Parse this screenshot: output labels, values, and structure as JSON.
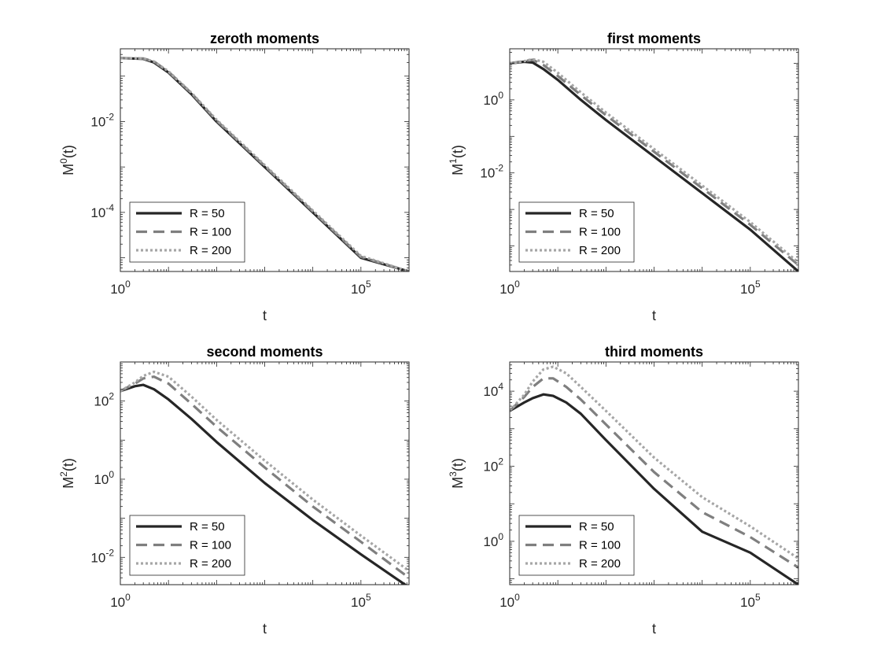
{
  "chart_data": [
    {
      "type": "line",
      "title": "zeroth moments",
      "xlabel": "t",
      "ylabel": "M^0(t)",
      "ylabel_base": "M",
      "ylabel_sup": "0",
      "ylabel_tail": "(t)",
      "x_scale": "log",
      "y_scale": "log",
      "xlim": [
        1,
        1000000
      ],
      "ylim": [
        5e-06,
        0.4
      ],
      "x_ticks": [
        {
          "base": "10",
          "exp": "0",
          "value": 1
        },
        {
          "base": "10",
          "exp": "5",
          "value": 100000
        }
      ],
      "y_ticks": [
        {
          "base": "10",
          "exp": "-4",
          "value": 0.0001
        },
        {
          "base": "10",
          "exp": "-2",
          "value": 0.01
        }
      ],
      "legend": "bottom-left",
      "grid": false,
      "series": [
        {
          "name": "R = 50",
          "style": "solid",
          "color": "#262626",
          "x": [
            1,
            3,
            5,
            10,
            30,
            100,
            1000,
            10000,
            100000,
            1000000
          ],
          "y": [
            0.25,
            0.24,
            0.2,
            0.12,
            0.04,
            0.01,
            0.001,
            0.0001,
            1e-05,
            5e-06
          ]
        },
        {
          "name": "R = 100",
          "style": "dashed",
          "color": "#7f7f7f",
          "x": [
            1,
            3,
            5,
            10,
            30,
            100,
            1000,
            10000,
            100000,
            1000000
          ],
          "y": [
            0.25,
            0.245,
            0.21,
            0.125,
            0.042,
            0.0105,
            0.00105,
            0.000105,
            1.05e-05,
            5e-06
          ]
        },
        {
          "name": "R = 200",
          "style": "dotted",
          "color": "#a6a6a6",
          "x": [
            1,
            3,
            5,
            10,
            30,
            100,
            1000,
            10000,
            100000,
            1000000
          ],
          "y": [
            0.25,
            0.245,
            0.21,
            0.128,
            0.043,
            0.011,
            0.0011,
            0.00011,
            1.1e-05,
            5e-06
          ]
        }
      ]
    },
    {
      "type": "line",
      "title": "first moments",
      "xlabel": "t",
      "ylabel": "M^1(t)",
      "ylabel_base": "M",
      "ylabel_sup": "1",
      "ylabel_tail": "(t)",
      "x_scale": "log",
      "y_scale": "log",
      "xlim": [
        1,
        1000000
      ],
      "ylim": [
        2e-05,
        25
      ],
      "x_ticks": [
        {
          "base": "10",
          "exp": "0",
          "value": 1
        },
        {
          "base": "10",
          "exp": "5",
          "value": 100000
        }
      ],
      "y_ticks": [
        {
          "base": "10",
          "exp": "-2",
          "value": 0.01
        },
        {
          "base": "10",
          "exp": "0",
          "value": 1
        }
      ],
      "legend": "bottom-left",
      "grid": false,
      "series": [
        {
          "name": "R = 50",
          "style": "solid",
          "color": "#262626",
          "x": [
            1,
            2,
            3,
            5,
            10,
            30,
            100,
            1000,
            10000,
            100000,
            1000000
          ],
          "y": [
            10,
            11,
            10.5,
            7,
            3.5,
            1.0,
            0.28,
            0.028,
            0.0028,
            0.00028,
            2e-05
          ]
        },
        {
          "name": "R = 100",
          "style": "dashed",
          "color": "#7f7f7f",
          "x": [
            1,
            2,
            3,
            5,
            10,
            30,
            100,
            1000,
            10000,
            100000,
            1000000
          ],
          "y": [
            10,
            11.5,
            12.5,
            9,
            4.5,
            1.35,
            0.38,
            0.038,
            0.0038,
            0.00038,
            3e-05
          ]
        },
        {
          "name": "R = 200",
          "style": "dotted",
          "color": "#a6a6a6",
          "x": [
            1,
            2,
            3,
            5,
            10,
            30,
            100,
            1000,
            10000,
            100000,
            1000000
          ],
          "y": [
            10,
            11.5,
            13,
            11,
            5.5,
            1.6,
            0.45,
            0.045,
            0.0045,
            0.00045,
            3.5e-05
          ]
        }
      ]
    },
    {
      "type": "line",
      "title": "second moments",
      "xlabel": "t",
      "ylabel": "M^2(t)",
      "ylabel_base": "M",
      "ylabel_sup": "2",
      "ylabel_tail": "(t)",
      "x_scale": "log",
      "y_scale": "log",
      "xlim": [
        1,
        1000000
      ],
      "ylim": [
        0.002,
        1000
      ],
      "x_ticks": [
        {
          "base": "10",
          "exp": "0",
          "value": 1
        },
        {
          "base": "10",
          "exp": "5",
          "value": 100000
        }
      ],
      "y_ticks": [
        {
          "base": "10",
          "exp": "-2",
          "value": 0.01
        },
        {
          "base": "10",
          "exp": "0",
          "value": 1
        },
        {
          "base": "10",
          "exp": "2",
          "value": 100
        }
      ],
      "legend": "bottom-left",
      "grid": false,
      "series": [
        {
          "name": "R = 50",
          "style": "solid",
          "color": "#262626",
          "x": [
            1,
            2,
            3,
            5,
            10,
            30,
            100,
            1000,
            10000,
            100000,
            1000000
          ],
          "y": [
            180,
            240,
            260,
            200,
            110,
            35,
            9,
            0.8,
            0.09,
            0.012,
            0.0017
          ]
        },
        {
          "name": "R = 100",
          "style": "dashed",
          "color": "#7f7f7f",
          "x": [
            1,
            2,
            3,
            5,
            10,
            30,
            100,
            1000,
            10000,
            100000,
            1000000
          ],
          "y": [
            180,
            280,
            380,
            420,
            280,
            85,
            22,
            2.0,
            0.2,
            0.025,
            0.003
          ]
        },
        {
          "name": "R = 200",
          "style": "dotted",
          "color": "#a6a6a6",
          "x": [
            1,
            2,
            3,
            5,
            10,
            30,
            100,
            1000,
            10000,
            100000,
            1000000
          ],
          "y": [
            180,
            300,
            440,
            560,
            420,
            130,
            33,
            3.0,
            0.3,
            0.036,
            0.0045
          ]
        }
      ]
    },
    {
      "type": "line",
      "title": "third moments",
      "xlabel": "t",
      "ylabel": "M^3(t)",
      "ylabel_base": "M",
      "ylabel_sup": "3",
      "ylabel_tail": "(t)",
      "x_scale": "log",
      "y_scale": "log",
      "xlim": [
        1,
        1000000
      ],
      "ylim": [
        0.07,
        60000
      ],
      "x_ticks": [
        {
          "base": "10",
          "exp": "0",
          "value": 1
        },
        {
          "base": "10",
          "exp": "5",
          "value": 100000
        }
      ],
      "y_ticks": [
        {
          "base": "10",
          "exp": "0",
          "value": 1
        },
        {
          "base": "10",
          "exp": "2",
          "value": 100
        },
        {
          "base": "10",
          "exp": "4",
          "value": 10000
        }
      ],
      "legend": "bottom-left",
      "grid": false,
      "series": [
        {
          "name": "R = 50",
          "style": "solid",
          "color": "#262626",
          "x": [
            1,
            2,
            3,
            5,
            8,
            15,
            30,
            100,
            1000,
            10000,
            100000,
            1000000
          ],
          "y": [
            3000,
            5000,
            6500,
            8200,
            7500,
            5000,
            2500,
            500,
            25,
            1.8,
            0.5,
            0.07
          ]
        },
        {
          "name": "R = 100",
          "style": "dashed",
          "color": "#7f7f7f",
          "x": [
            1,
            2,
            3,
            5,
            8,
            15,
            30,
            100,
            1000,
            10000,
            100000,
            1000000
          ],
          "y": [
            3000,
            7000,
            13000,
            22000,
            22000,
            13000,
            6000,
            1300,
            70,
            6,
            1.3,
            0.2
          ]
        },
        {
          "name": "R = 200",
          "style": "dotted",
          "color": "#a6a6a6",
          "x": [
            1,
            2,
            3,
            5,
            8,
            15,
            30,
            100,
            1000,
            10000,
            100000,
            1000000
          ],
          "y": [
            3000,
            8000,
            18000,
            38000,
            45000,
            30000,
            13000,
            3000,
            170,
            15,
            2.5,
            0.35
          ]
        }
      ]
    }
  ]
}
